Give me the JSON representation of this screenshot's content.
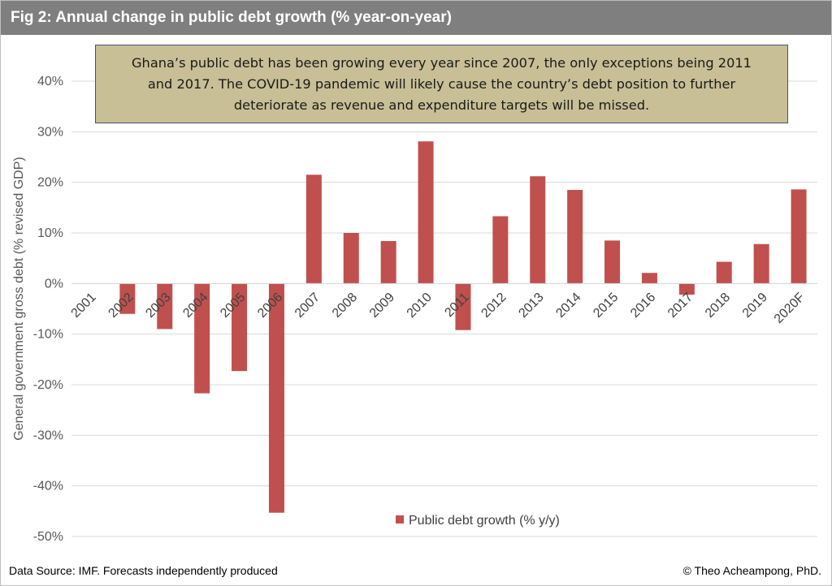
{
  "header": {
    "title": "Fig 2: Annual change in public debt growth (%  year-on-year)"
  },
  "annotation": {
    "line1": "Ghana’s public debt has been growing every year since 2007, the only exceptions being 2011",
    "line2": "and 2017. The COVID-19 pandemic will likely cause the country’s debt position to further",
    "line3": "deteriorate as revenue and expenditure targets will be missed."
  },
  "legend": {
    "label": "Public debt growth (% y/y)"
  },
  "footer": {
    "source": "Data Source: IMF. Forecasts independently produced",
    "credit": "© Theo Acheampong, PhD."
  },
  "chart_data": {
    "type": "bar",
    "categories": [
      "2001",
      "2002",
      "2003",
      "2004",
      "2005",
      "2006",
      "2007",
      "2008",
      "2009",
      "2010",
      "2011",
      "2012",
      "2013",
      "2014",
      "2015",
      "2016",
      "2017",
      "2018",
      "2019",
      "2020F"
    ],
    "series": [
      {
        "name": "Public debt growth (% y/y)",
        "values": [
          0.0,
          -6.0,
          -9.0,
          -21.7,
          -17.3,
          -45.3,
          21.5,
          10.0,
          8.4,
          28.1,
          -9.2,
          13.3,
          21.2,
          18.5,
          8.5,
          2.1,
          -2.2,
          4.3,
          7.8,
          18.6
        ],
        "color": "#c0504d"
      }
    ],
    "ylabel": "General government gross debt (% revised GDP)",
    "xlabel": "",
    "ylim": [
      -50,
      40
    ],
    "yticks": [
      -50,
      -40,
      -30,
      -20,
      -10,
      0,
      10,
      20,
      30,
      40
    ],
    "ytick_labels": [
      "-50%",
      "-40%",
      "-30%",
      "-20%",
      "-10%",
      "0%",
      "10%",
      "20%",
      "30%",
      "40%"
    ],
    "grid": true,
    "legend_position": "bottom-center",
    "gridline_color": "#d9d9d9"
  }
}
